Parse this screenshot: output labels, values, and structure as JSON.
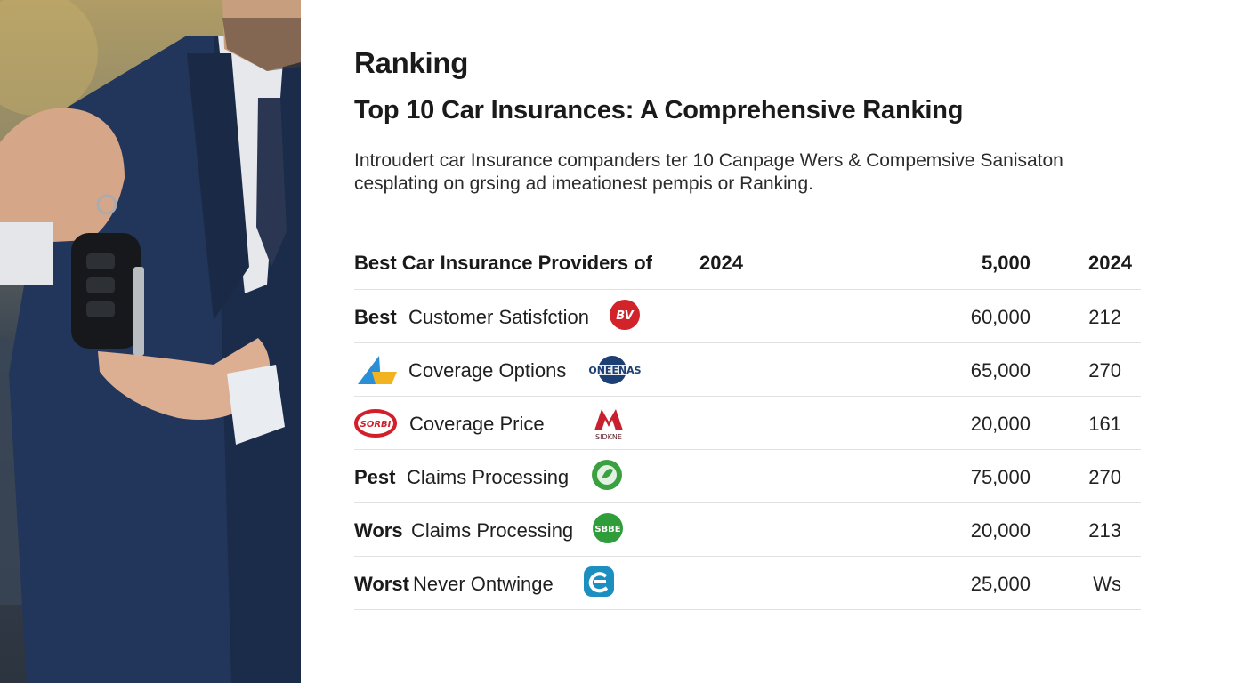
{
  "section_label": "Ranking",
  "title": "Top 10 Car Insurances: A Comprehensive Ranking",
  "intro": {
    "line1": "Introudert car Insurance companders ter 10 Canpage Wers & Compemsive Sanisaton",
    "line2": "cesplating on  grsing ad imeationest pempis or Ranking."
  },
  "table": {
    "headers": {
      "provider": "Best Car Insurance Providers of",
      "year": "2024",
      "col_a": "5,000",
      "col_b": "2024"
    },
    "rows": [
      {
        "lead": "Best",
        "label": "Customer Satisfction",
        "logo_text": "BV",
        "logo_color": "#d2232a",
        "value_a": "60,000",
        "value_b": "212"
      },
      {
        "lead": "",
        "label": "Coverage Options",
        "logo_text": "ONEENAS",
        "logo_color": "#1d3f73",
        "value_a": "65,000",
        "value_b": "270"
      },
      {
        "lead": "",
        "label": "Coverage Price",
        "logo_text": "SIDKNE",
        "logo_color": "#c8202f",
        "value_a": "20,000",
        "value_b": "161"
      },
      {
        "lead": "Pest",
        "label": "Claims Processing",
        "logo_text": "",
        "logo_color": "#3aa040",
        "value_a": "75,000",
        "value_b": "270"
      },
      {
        "lead": "Wors",
        "label": "Claims Processing",
        "logo_text": "SBBE",
        "logo_color": "#2e9d3a",
        "value_a": "20,000",
        "value_b": "213"
      },
      {
        "lead": "Worst",
        "label": "Never Ontwinge",
        "logo_text": "",
        "logo_color": "#1c8fc0",
        "value_a": "25,000",
        "value_b": "Ws"
      }
    ],
    "left_logos": {
      "row2_icon": "triangle-logo-icon",
      "row3_icon": "oval-badge-logo-icon",
      "row3_text": "SORBI"
    }
  },
  "photo": {
    "subject": "person-holding-car-key-icon"
  }
}
